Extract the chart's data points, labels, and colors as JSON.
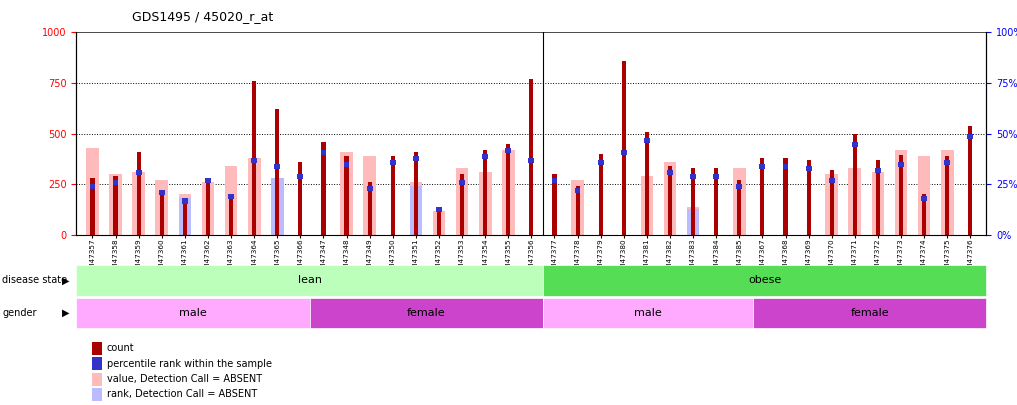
{
  "title": "GDS1495 / 45020_r_at",
  "samples": [
    "GSM47357",
    "GSM47358",
    "GSM47359",
    "GSM47360",
    "GSM47361",
    "GSM47362",
    "GSM47363",
    "GSM47364",
    "GSM47365",
    "GSM47366",
    "GSM47347",
    "GSM47348",
    "GSM47349",
    "GSM47350",
    "GSM47351",
    "GSM47352",
    "GSM47353",
    "GSM47354",
    "GSM47355",
    "GSM47356",
    "GSM47377",
    "GSM47378",
    "GSM47379",
    "GSM47380",
    "GSM47381",
    "GSM47382",
    "GSM47383",
    "GSM47384",
    "GSM47385",
    "GSM47367",
    "GSM47368",
    "GSM47369",
    "GSM47370",
    "GSM47371",
    "GSM47372",
    "GSM47373",
    "GSM47374",
    "GSM47375",
    "GSM47376"
  ],
  "count": [
    280,
    290,
    410,
    220,
    170,
    260,
    200,
    760,
    620,
    360,
    460,
    390,
    260,
    390,
    410,
    130,
    300,
    420,
    450,
    770,
    300,
    240,
    400,
    860,
    510,
    340,
    330,
    330,
    270,
    380,
    380,
    370,
    320,
    500,
    370,
    395,
    200,
    390,
    540
  ],
  "percentile": [
    25,
    27,
    32,
    22,
    18,
    28,
    20,
    38,
    35,
    30,
    42,
    36,
    24,
    37,
    39,
    14,
    27,
    40,
    43,
    38,
    28,
    23,
    37,
    42,
    48,
    32,
    30,
    30,
    25,
    35,
    35,
    34,
    28,
    46,
    33,
    36,
    19,
    37,
    50
  ],
  "value_absent": [
    430,
    300,
    310,
    270,
    200,
    260,
    340,
    380,
    280,
    0,
    0,
    410,
    390,
    0,
    260,
    120,
    330,
    310,
    420,
    0,
    0,
    270,
    0,
    0,
    290,
    360,
    140,
    0,
    330,
    0,
    0,
    0,
    300,
    330,
    310,
    420,
    390,
    420,
    0
  ],
  "rank_absent": [
    0,
    0,
    0,
    0,
    180,
    0,
    0,
    0,
    280,
    0,
    0,
    0,
    0,
    0,
    240,
    0,
    0,
    0,
    0,
    0,
    0,
    0,
    0,
    0,
    0,
    0,
    130,
    0,
    0,
    0,
    0,
    0,
    0,
    0,
    0,
    0,
    0,
    0,
    0
  ],
  "ylim_left": [
    0,
    1000
  ],
  "ylim_right": [
    0,
    100
  ],
  "yticks_left": [
    0,
    250,
    500,
    750,
    1000
  ],
  "yticks_right": [
    0,
    25,
    50,
    75,
    100
  ],
  "color_count": "#aa0000",
  "color_percentile": "#3333cc",
  "color_value_absent": "#ffbbbb",
  "color_rank_absent": "#bbbbff",
  "color_lean": "#bbffbb",
  "color_obese": "#55dd55",
  "color_male_light": "#ffaaff",
  "color_female_dark": "#cc44cc",
  "legend_items": [
    [
      "count",
      "#aa0000"
    ],
    [
      "percentile rank within the sample",
      "#3333cc"
    ],
    [
      "value, Detection Call = ABSENT",
      "#ffbbbb"
    ],
    [
      "rank, Detection Call = ABSENT",
      "#bbbbff"
    ]
  ],
  "lean_count": 20,
  "obese_count": 19,
  "lean_male_count": 10,
  "lean_female_count": 10,
  "obese_male_count": 9,
  "obese_female_count": 10
}
